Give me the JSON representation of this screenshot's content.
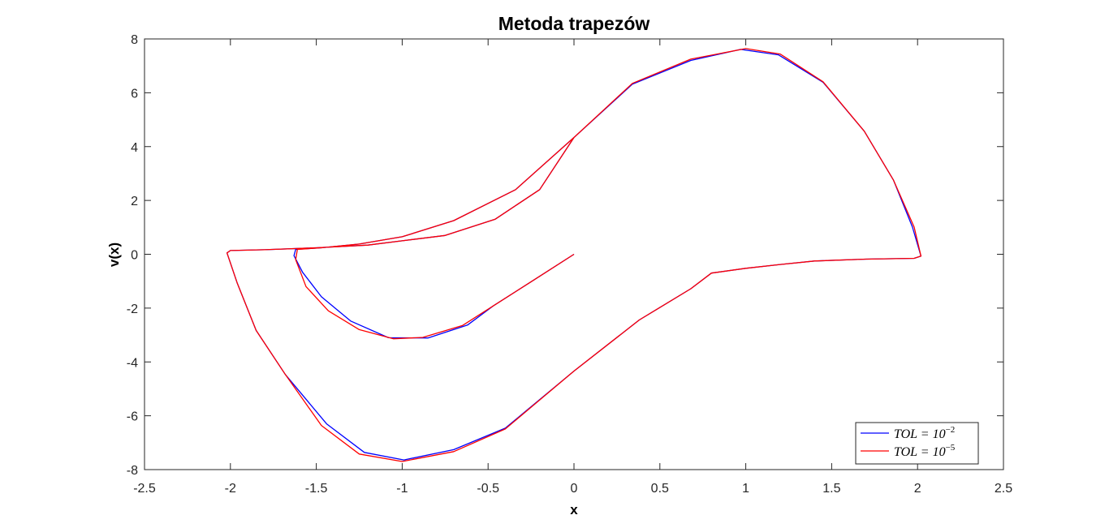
{
  "chart_data": {
    "type": "line",
    "title": "Metoda trapezów",
    "xlabel": "x",
    "ylabel": "v(x)",
    "xlim": [
      -2.5,
      2.5
    ],
    "ylim": [
      -8,
      8
    ],
    "xticks": [
      "-2.5",
      "-2",
      "-1.5",
      "-1",
      "-0.5",
      "0",
      "0.5",
      "1",
      "1.5",
      "2",
      "2.5"
    ],
    "yticks": [
      "-8",
      "-6",
      "-4",
      "-2",
      "0",
      "2",
      "4",
      "6",
      "8"
    ],
    "legend_position": "bottom-right",
    "grid": false,
    "series": [
      {
        "name_base": "TOL = 10",
        "name_exp": "−2",
        "color": "#0000ff",
        "x": [
          0,
          -0.25,
          -0.47,
          -0.62,
          -0.85,
          -1.08,
          -1.3,
          -1.47,
          -1.58,
          -1.63,
          -1.62,
          -1.47,
          -1.25,
          -1.0,
          -0.7,
          -0.34,
          0.0,
          0.34,
          0.68,
          0.97,
          1.19,
          1.45,
          1.69,
          1.86,
          1.97,
          2.02,
          1.98,
          1.7,
          1.4,
          1.2,
          1.0,
          0.8,
          0.68,
          0.38,
          0.0,
          -0.4,
          -0.7,
          -0.99,
          -1.22,
          -1.44,
          -1.68,
          -1.85,
          -1.96,
          -2.02,
          -2.0,
          -1.8,
          -1.5,
          -1.2,
          -1.0,
          -0.75,
          -0.46,
          -0.2,
          0.0
        ],
        "y": [
          0,
          -1.02,
          -1.92,
          -2.63,
          -3.11,
          -3.1,
          -2.48,
          -1.58,
          -0.67,
          -0.05,
          0.18,
          0.24,
          0.38,
          0.65,
          1.25,
          2.4,
          4.34,
          6.32,
          7.2,
          7.61,
          7.41,
          6.39,
          4.57,
          2.75,
          1.01,
          -0.07,
          -0.15,
          -0.18,
          -0.25,
          -0.38,
          -0.52,
          -0.7,
          -1.28,
          -2.44,
          -4.34,
          -6.46,
          -7.26,
          -7.64,
          -7.36,
          -6.3,
          -4.47,
          -2.83,
          -1.08,
          0.05,
          0.14,
          0.17,
          0.24,
          0.34,
          0.5,
          0.7,
          1.3,
          2.4,
          4.34
        ]
      },
      {
        "name_base": "TOL = 10",
        "name_exp": "−5",
        "color": "#ff0000",
        "x": [
          0,
          -0.25,
          -0.47,
          -0.65,
          -0.88,
          -1.05,
          -1.25,
          -1.43,
          -1.56,
          -1.62,
          -1.61,
          -1.47,
          -1.25,
          -1.0,
          -0.7,
          -0.34,
          0.0,
          0.34,
          0.68,
          1.0,
          1.2,
          1.45,
          1.69,
          1.86,
          1.98,
          2.02,
          1.98,
          1.7,
          1.4,
          1.2,
          1.0,
          0.8,
          0.68,
          0.38,
          0.0,
          -0.4,
          -0.7,
          -1.0,
          -1.25,
          -1.47,
          -1.68,
          -1.85,
          -1.96,
          -2.02,
          -2.0,
          -1.8,
          -1.5,
          -1.2,
          -1.0,
          -0.75,
          -0.46,
          -0.2,
          0.0
        ],
        "y": [
          0,
          -1.02,
          -1.92,
          -2.65,
          -3.09,
          -3.14,
          -2.8,
          -2.1,
          -1.2,
          -0.2,
          0.18,
          0.24,
          0.38,
          0.65,
          1.25,
          2.4,
          4.34,
          6.35,
          7.25,
          7.64,
          7.44,
          6.41,
          4.57,
          2.75,
          1.01,
          -0.07,
          -0.15,
          -0.18,
          -0.25,
          -0.38,
          -0.52,
          -0.7,
          -1.28,
          -2.44,
          -4.34,
          -6.49,
          -7.33,
          -7.7,
          -7.42,
          -6.36,
          -4.47,
          -2.83,
          -1.08,
          0.05,
          0.14,
          0.17,
          0.24,
          0.34,
          0.5,
          0.7,
          1.3,
          2.4,
          4.34
        ]
      }
    ]
  }
}
